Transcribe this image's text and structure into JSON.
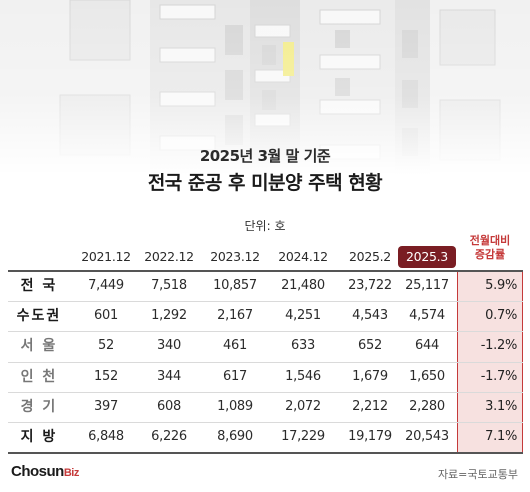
{
  "header": {
    "subtitle": "2025년 3월 말 기준",
    "title": "전국 준공 후 미분양 주택 현황",
    "unit": "단위: 호"
  },
  "chart_data": {
    "type": "table",
    "title": "전국 준공 후 미분양 주택 현황",
    "subtitle": "2025년 3월 말 기준",
    "unit": "단위: 호",
    "columns": [
      "2021.12",
      "2022.12",
      "2023.12",
      "2024.12",
      "2025.2",
      "2025.3"
    ],
    "highlight_column": "2025.3",
    "change_header_line1": "전월대비",
    "change_header_line2": "증감률",
    "rows": [
      {
        "label": "전 국",
        "values": [
          "7,449",
          "7,518",
          "10,857",
          "21,480",
          "23,722",
          "25,117"
        ],
        "change": "5.9%",
        "sub": false
      },
      {
        "label": "수도권",
        "values": [
          "601",
          "1,292",
          "2,167",
          "4,251",
          "4,543",
          "4,574"
        ],
        "change": "0.7%",
        "sub": false
      },
      {
        "label": "서 울",
        "values": [
          "52",
          "340",
          "461",
          "633",
          "652",
          "644"
        ],
        "change": "-1.2%",
        "sub": true
      },
      {
        "label": "인 천",
        "values": [
          "152",
          "344",
          "617",
          "1,546",
          "1,679",
          "1,650"
        ],
        "change": "-1.7%",
        "sub": true
      },
      {
        "label": "경 기",
        "values": [
          "397",
          "608",
          "1,089",
          "2,072",
          "2,212",
          "2,280"
        ],
        "change": "3.1%",
        "sub": true
      },
      {
        "label": "지 방",
        "values": [
          "6,848",
          "6,226",
          "8,690",
          "17,229",
          "19,179",
          "20,543"
        ],
        "change": "7.1%",
        "sub": false
      }
    ]
  },
  "footer": {
    "logo_main": "Chosun",
    "logo_accent": "Biz",
    "source": "자료=국토교통부"
  },
  "colors": {
    "accent": "#7a1d23",
    "change_red": "#c53a3a",
    "change_bg": "#f7e1e0",
    "window_yellow": "#f3ec8a"
  }
}
